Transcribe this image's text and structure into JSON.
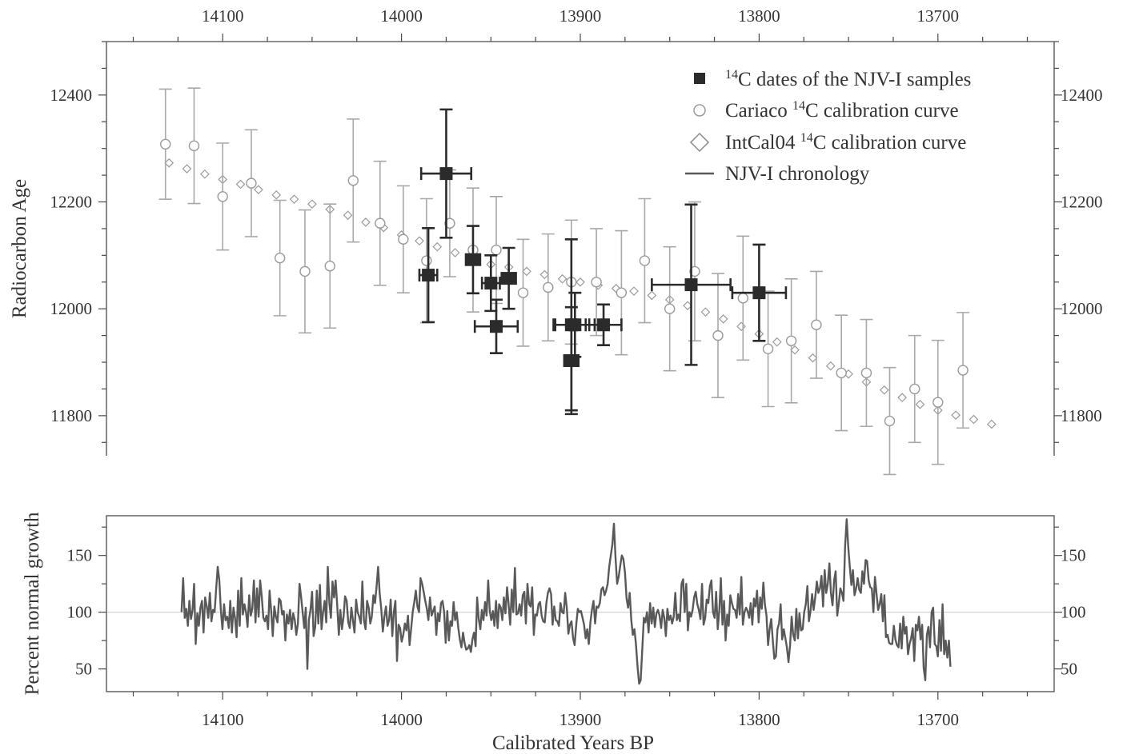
{
  "chart_data": [
    {
      "type": "scatter",
      "ylabel": "Radiocarbon Age",
      "xlabel": "",
      "xlim": [
        14165,
        13635
      ],
      "ylim": [
        11725,
        12500
      ],
      "x_reversed": true,
      "x_ticks": [
        14100,
        14000,
        13900,
        13800,
        13700
      ],
      "y_ticks": [
        11800,
        12000,
        12200,
        12400
      ],
      "x_tick_labels": [
        "14100",
        "14000",
        "13900",
        "13800",
        "13700"
      ],
      "y_tick_labels": [
        "11800",
        "12000",
        "12200",
        "12400"
      ],
      "legend": {
        "placement": "top-right",
        "items": [
          {
            "pre": "",
            "sup": "14",
            "post": "C dates of the NJV-I samples"
          },
          {
            "pre": "Cariaco ",
            "sup": "14",
            "post": "C calibration curve"
          },
          {
            "pre": "IntCal04 ",
            "sup": "14",
            "post": "C calibration curve"
          },
          {
            "pre": "NJV-I chronology",
            "sup": "",
            "post": ""
          }
        ]
      },
      "series": [
        {
          "name": "14C dates of the NJV-I samples",
          "marker": "filled-square",
          "color": "#2b2b2b",
          "points": [
            {
              "x": 13975,
              "y": 12253,
              "xerr": 14,
              "yerr": 120
            },
            {
              "x": 13985,
              "y": 12063,
              "xerr": 5,
              "yerr": 88
            },
            {
              "x": 13960,
              "y": 12092,
              "xerr": 4,
              "yerr": 63
            },
            {
              "x": 13950,
              "y": 12048,
              "xerr": 5,
              "yerr": 52
            },
            {
              "x": 13940,
              "y": 12057,
              "xerr": 4,
              "yerr": 57
            },
            {
              "x": 13947,
              "y": 11967,
              "xerr": 12,
              "yerr": 50
            },
            {
              "x": 13905,
              "y": 11970,
              "xerr": 10,
              "yerr": 160
            },
            {
              "x": 13903,
              "y": 11970,
              "xerr": 11,
              "yerr": 60
            },
            {
              "x": 13905,
              "y": 11903,
              "xerr": 4,
              "yerr": 100
            },
            {
              "x": 13887,
              "y": 11970,
              "xerr": 10,
              "yerr": 38
            },
            {
              "x": 13838,
              "y": 12045,
              "xerr": 22,
              "yerr": 150
            },
            {
              "x": 13800,
              "y": 12030,
              "xerr": 15,
              "yerr": 90
            }
          ]
        },
        {
          "name": "Cariaco 14C calibration curve",
          "marker": "open-circle",
          "color": "#9a9a9a",
          "points": [
            {
              "x": 14132,
              "y": 12308,
              "yerr": 103
            },
            {
              "x": 14116,
              "y": 12305,
              "yerr": 108
            },
            {
              "x": 14100,
              "y": 12210,
              "yerr": 100
            },
            {
              "x": 14084,
              "y": 12235,
              "yerr": 100
            },
            {
              "x": 14068,
              "y": 12095,
              "yerr": 108
            },
            {
              "x": 14054,
              "y": 12070,
              "yerr": 115
            },
            {
              "x": 14040,
              "y": 12080,
              "yerr": 116
            },
            {
              "x": 14027,
              "y": 12240,
              "yerr": 115
            },
            {
              "x": 14012,
              "y": 12160,
              "yerr": 116
            },
            {
              "x": 13999,
              "y": 12130,
              "yerr": 100
            },
            {
              "x": 13986,
              "y": 12090,
              "yerr": 116
            },
            {
              "x": 13973,
              "y": 12160,
              "yerr": 100
            },
            {
              "x": 13960,
              "y": 12110,
              "yerr": 116
            },
            {
              "x": 13947,
              "y": 12110,
              "yerr": 100
            },
            {
              "x": 13932,
              "y": 12030,
              "yerr": 100
            },
            {
              "x": 13918,
              "y": 12040,
              "yerr": 100
            },
            {
              "x": 13905,
              "y": 12050,
              "yerr": 116
            },
            {
              "x": 13891,
              "y": 12050,
              "yerr": 100
            },
            {
              "x": 13877,
              "y": 12030,
              "yerr": 116
            },
            {
              "x": 13864,
              "y": 12090,
              "yerr": 116
            },
            {
              "x": 13850,
              "y": 12000,
              "yerr": 116
            },
            {
              "x": 13836,
              "y": 12070,
              "yerr": 130
            },
            {
              "x": 13823,
              "y": 11950,
              "yerr": 116
            },
            {
              "x": 13809,
              "y": 12020,
              "yerr": 116
            },
            {
              "x": 13795,
              "y": 11925,
              "yerr": 108
            },
            {
              "x": 13782,
              "y": 11940,
              "yerr": 116
            },
            {
              "x": 13768,
              "y": 11970,
              "yerr": 100
            },
            {
              "x": 13754,
              "y": 11880,
              "yerr": 108
            },
            {
              "x": 13740,
              "y": 11880,
              "yerr": 100
            },
            {
              "x": 13727,
              "y": 11790,
              "yerr": 100
            },
            {
              "x": 13713,
              "y": 11850,
              "yerr": 100
            },
            {
              "x": 13700,
              "y": 11825,
              "yerr": 116
            },
            {
              "x": 13686,
              "y": 11885,
              "yerr": 108
            }
          ]
        },
        {
          "name": "IntCal04 14C calibration curve",
          "marker": "open-diamond",
          "color": "#9a9a9a",
          "points": [
            {
              "x": 14130,
              "y": 12273
            },
            {
              "x": 14120,
              "y": 12262
            },
            {
              "x": 14110,
              "y": 12252
            },
            {
              "x": 14100,
              "y": 12242
            },
            {
              "x": 14090,
              "y": 12233
            },
            {
              "x": 14080,
              "y": 12223
            },
            {
              "x": 14070,
              "y": 12213
            },
            {
              "x": 14060,
              "y": 12205
            },
            {
              "x": 14050,
              "y": 12196
            },
            {
              "x": 14040,
              "y": 12186
            },
            {
              "x": 14030,
              "y": 12175
            },
            {
              "x": 14020,
              "y": 12162
            },
            {
              "x": 14010,
              "y": 12152
            },
            {
              "x": 14000,
              "y": 12138
            },
            {
              "x": 13990,
              "y": 12127
            },
            {
              "x": 13980,
              "y": 12116
            },
            {
              "x": 13970,
              "y": 12105
            },
            {
              "x": 13960,
              "y": 12094
            },
            {
              "x": 13950,
              "y": 12083
            },
            {
              "x": 13940,
              "y": 12078
            },
            {
              "x": 13930,
              "y": 12070
            },
            {
              "x": 13920,
              "y": 12064
            },
            {
              "x": 13910,
              "y": 12056
            },
            {
              "x": 13900,
              "y": 12050
            },
            {
              "x": 13890,
              "y": 12044
            },
            {
              "x": 13880,
              "y": 12038
            },
            {
              "x": 13870,
              "y": 12033
            },
            {
              "x": 13860,
              "y": 12025
            },
            {
              "x": 13850,
              "y": 12017
            },
            {
              "x": 13840,
              "y": 12006
            },
            {
              "x": 13830,
              "y": 11994
            },
            {
              "x": 13820,
              "y": 11981
            },
            {
              "x": 13810,
              "y": 11967
            },
            {
              "x": 13800,
              "y": 11953
            },
            {
              "x": 13790,
              "y": 11938
            },
            {
              "x": 13780,
              "y": 11923
            },
            {
              "x": 13770,
              "y": 11908
            },
            {
              "x": 13760,
              "y": 11893
            },
            {
              "x": 13750,
              "y": 11878
            },
            {
              "x": 13740,
              "y": 11863
            },
            {
              "x": 13730,
              "y": 11848
            },
            {
              "x": 13720,
              "y": 11834
            },
            {
              "x": 13710,
              "y": 11821
            },
            {
              "x": 13700,
              "y": 11810
            },
            {
              "x": 13690,
              "y": 11801
            },
            {
              "x": 13680,
              "y": 11793
            },
            {
              "x": 13670,
              "y": 11784
            }
          ]
        }
      ]
    },
    {
      "type": "line",
      "ylabel": "Percent normal growth",
      "xlabel": "Calibrated Years BP",
      "xlim": [
        14165,
        13635
      ],
      "ylim": [
        30,
        185
      ],
      "x_reversed": true,
      "x_ticks": [
        14100,
        14000,
        13900,
        13800,
        13700
      ],
      "y_ticks": [
        50,
        100,
        150
      ],
      "x_tick_labels": [
        "14100",
        "14000",
        "13900",
        "13800",
        "13700"
      ],
      "y_tick_labels": [
        "50",
        "100",
        "150"
      ],
      "reference_line": 100,
      "series": [
        {
          "name": "NJV-I chronology",
          "color": "#595959",
          "x_start": 14123,
          "x_end": 13693,
          "values": [
            100,
            130,
            95,
            103,
            88,
            110,
            94,
            102,
            125,
            72,
            99,
            88,
            104,
            110,
            82,
            113,
            105,
            95,
            117,
            92,
            102,
            100,
            120,
            140,
            128,
            102,
            85,
            107,
            93,
            96,
            86,
            110,
            82,
            104,
            95,
            78,
            119,
            88,
            130,
            98,
            107,
            100,
            87,
            115,
            97,
            103,
            128,
            91,
            121,
            96,
            128,
            114,
            95,
            92,
            97,
            85,
            119,
            101,
            79,
            105,
            96,
            91,
            112,
            110,
            98,
            101,
            75,
            98,
            90,
            102,
            85,
            99,
            93,
            80,
            90,
            125,
            114,
            100,
            86,
            104,
            50,
            93,
            102,
            118,
            79,
            87,
            119,
            90,
            124,
            85,
            100,
            110,
            91,
            140,
            108,
            95,
            127,
            113,
            128,
            106,
            80,
            102,
            85,
            96,
            114,
            110,
            91,
            86,
            104,
            93,
            82,
            111,
            100,
            96,
            90,
            127,
            93,
            85,
            110,
            104,
            90,
            96,
            115,
            108,
            122,
            140,
            117,
            103,
            83,
            96,
            105,
            88,
            93,
            111,
            79,
            100,
            110,
            57,
            89,
            86,
            74,
            80,
            90,
            84,
            97,
            71,
            85,
            100,
            109,
            119,
            105,
            100,
            130,
            125,
            118,
            110,
            103,
            93,
            113,
            97,
            101,
            105,
            80,
            99,
            92,
            108,
            110,
            100,
            73,
            101,
            75,
            92,
            88,
            109,
            93,
            100,
            86,
            76,
            69,
            82,
            73,
            67,
            68,
            71,
            65,
            76,
            82,
            70,
            113,
            94,
            85,
            102,
            93,
            109,
            97,
            128,
            101,
            93,
            101,
            88,
            110,
            86,
            107,
            104,
            93,
            113,
            99,
            122,
            107,
            89,
            120,
            100,
            139,
            98,
            99,
            107,
            97,
            115,
            118,
            90,
            125,
            107,
            105,
            122,
            80,
            98,
            97,
            107,
            109,
            97,
            92,
            91,
            108,
            117,
            121,
            116,
            89,
            105,
            93,
            92,
            88,
            108,
            100,
            99,
            117,
            104,
            81,
            89,
            92,
            77,
            71,
            89,
            103,
            100,
            101,
            95,
            89,
            77,
            85,
            72,
            91,
            102,
            110,
            90,
            105,
            104,
            108,
            120,
            122,
            115,
            119,
            125,
            140,
            150,
            160,
            178,
            148,
            125,
            131,
            141,
            150,
            147,
            135,
            112,
            104,
            117,
            93,
            80,
            85,
            72,
            52,
            37,
            40,
            67,
            95,
            91,
            100,
            82,
            108,
            90,
            104,
            87,
            99,
            102,
            97,
            86,
            102,
            95,
            79,
            103,
            93,
            97,
            90,
            96,
            117,
            93,
            98,
            92,
            125,
            129,
            100,
            125,
            84,
            100,
            96,
            102,
            113,
            118,
            107,
            102,
            94,
            125,
            89,
            95,
            111,
            108,
            123,
            128,
            100,
            95,
            118,
            85,
            102,
            130,
            89,
            110,
            75,
            98,
            88,
            115,
            108,
            103,
            102,
            95,
            116,
            98,
            131,
            89,
            100,
            104,
            101,
            95,
            108,
            89,
            112,
            105,
            119,
            91,
            113,
            103,
            126,
            107,
            97,
            71,
            85,
            94,
            75,
            59,
            61,
            85,
            90,
            107,
            76,
            85,
            77,
            69,
            56,
            71,
            96,
            80,
            75,
            103,
            77,
            99,
            84,
            85,
            100,
            107,
            123,
            92,
            101,
            116,
            102,
            113,
            127,
            117,
            121,
            132,
            105,
            137,
            117,
            125,
            143,
            117,
            106,
            128,
            136,
            97,
            108,
            121,
            117,
            110,
            158,
            182,
            158,
            140,
            124,
            137,
            115,
            121,
            130,
            120,
            117,
            136,
            125,
            146,
            145,
            128,
            122,
            121,
            100,
            131,
            116,
            102,
            107,
            116,
            92,
            115,
            78,
            80,
            73,
            72,
            72,
            88,
            76,
            71,
            69,
            90,
            68,
            96,
            81,
            87,
            63,
            72,
            77,
            86,
            57,
            89,
            84,
            96,
            76,
            89,
            51,
            40,
            80,
            87,
            69,
            100,
            104,
            72,
            70,
            61,
            93,
            66,
            107,
            63,
            75,
            60,
            75,
            52
          ]
        }
      ]
    }
  ]
}
